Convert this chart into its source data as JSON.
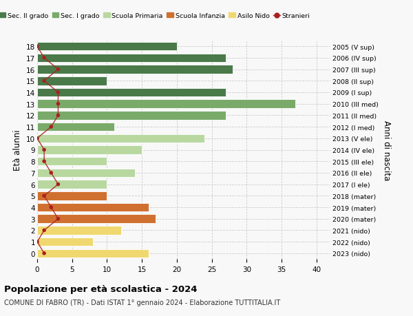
{
  "ages": [
    18,
    17,
    16,
    15,
    14,
    13,
    12,
    11,
    10,
    9,
    8,
    7,
    6,
    5,
    4,
    3,
    2,
    1,
    0
  ],
  "right_labels": [
    "2005 (V sup)",
    "2006 (IV sup)",
    "2007 (III sup)",
    "2008 (II sup)",
    "2009 (I sup)",
    "2010 (III med)",
    "2011 (II med)",
    "2012 (I med)",
    "2013 (V ele)",
    "2014 (IV ele)",
    "2015 (III ele)",
    "2016 (II ele)",
    "2017 (I ele)",
    "2018 (mater)",
    "2019 (mater)",
    "2020 (mater)",
    "2021 (nido)",
    "2022 (nido)",
    "2023 (nido)"
  ],
  "bar_values": [
    20,
    27,
    28,
    10,
    27,
    37,
    27,
    11,
    24,
    15,
    10,
    14,
    10,
    10,
    16,
    17,
    12,
    8,
    16
  ],
  "bar_colors": [
    "#4a7a4a",
    "#4a7a4a",
    "#4a7a4a",
    "#4a7a4a",
    "#4a7a4a",
    "#7aaa6a",
    "#7aaa6a",
    "#7aaa6a",
    "#b8d8a0",
    "#b8d8a0",
    "#b8d8a0",
    "#b8d8a0",
    "#b8d8a0",
    "#d07030",
    "#d07030",
    "#d07030",
    "#f0d870",
    "#f0d870",
    "#f0d870"
  ],
  "stranieri_x": [
    0,
    1,
    3,
    1,
    3,
    3,
    3,
    2,
    0,
    1,
    1,
    2,
    3,
    1,
    2,
    3,
    1,
    0,
    1
  ],
  "title_main": "Popolazione per età scolastica - 2024",
  "title_sub": "COMUNE DI FABRO (TR) - Dati ISTAT 1° gennaio 2024 - Elaborazione TUTTITALIA.IT",
  "ylabel": "Età alunni",
  "right_ylabel": "Anni di nascita",
  "xlim": [
    0,
    42
  ],
  "ylim": [
    -0.5,
    18.5
  ],
  "legend_entries": [
    {
      "label": "Sec. II grado",
      "color": "#4a7a4a"
    },
    {
      "label": "Sec. I grado",
      "color": "#7aaa6a"
    },
    {
      "label": "Scuola Primaria",
      "color": "#b8d8a0"
    },
    {
      "label": "Scuola Infanzia",
      "color": "#d07030"
    },
    {
      "label": "Asilo Nido",
      "color": "#f0d870"
    },
    {
      "label": "Stranieri",
      "color": "#aa2020"
    }
  ],
  "bg_color": "#f8f8f8",
  "grid_color": "#cccccc",
  "bar_height": 0.75,
  "stranieri_line_color": "#aa2020",
  "stranieri_dot_color": "#aa2020",
  "xticks": [
    0,
    5,
    10,
    15,
    20,
    25,
    30,
    35,
    40
  ]
}
